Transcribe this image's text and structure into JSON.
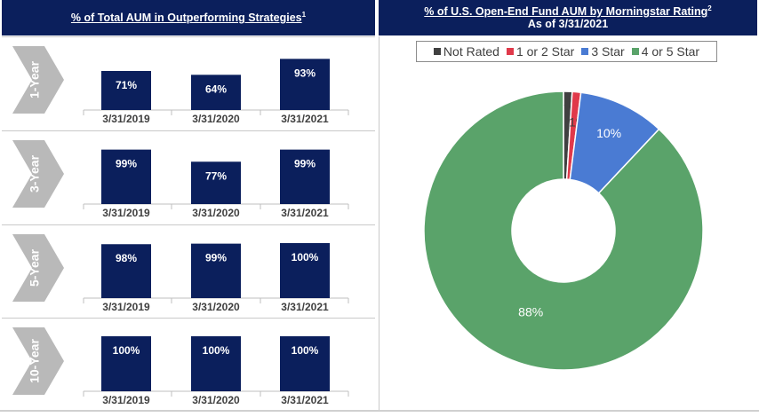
{
  "left_header": {
    "title": "% of Total AUM in Outperforming Strategies",
    "footnote": "1"
  },
  "right_header": {
    "title": "% of U.S. Open-End Fund AUM by Morningstar Rating",
    "footnote": "2",
    "subtitle": "As of 3/31/2021"
  },
  "colors": {
    "navy": "#0b1f5c",
    "arrow_gray": "#b9b9b9",
    "not_rated": "#404040",
    "one_two_star": "#e0394a",
    "three_star": "#4a7bd3",
    "four_five_star": "#5aa36a"
  },
  "chart_data": [
    {
      "type": "bar",
      "period": "1-Year",
      "categories": [
        "3/31/2019",
        "3/31/2020",
        "3/31/2021"
      ],
      "values": [
        71,
        64,
        93
      ],
      "labels": [
        "71%",
        "64%",
        "93%"
      ]
    },
    {
      "type": "bar",
      "period": "3-Year",
      "categories": [
        "3/31/2019",
        "3/31/2020",
        "3/31/2021"
      ],
      "values": [
        99,
        77,
        99
      ],
      "labels": [
        "99%",
        "77%",
        "99%"
      ]
    },
    {
      "type": "bar",
      "period": "5-Year",
      "categories": [
        "3/31/2019",
        "3/31/2020",
        "3/31/2021"
      ],
      "values": [
        98,
        99,
        100
      ],
      "labels": [
        "98%",
        "99%",
        "100%"
      ]
    },
    {
      "type": "bar",
      "period": "10-Year",
      "categories": [
        "3/31/2019",
        "3/31/2020",
        "3/31/2021"
      ],
      "values": [
        100,
        100,
        100
      ],
      "labels": [
        "100%",
        "100%",
        "100%"
      ]
    },
    {
      "type": "pie",
      "legend": [
        "Not Rated",
        "1 or 2 Star",
        "3 Star",
        "4 or 5 Star"
      ],
      "legend_placement": "top",
      "slices": [
        {
          "name": "Not Rated",
          "value": 1,
          "label": "1%",
          "color": "#404040"
        },
        {
          "name": "1 or 2 Star",
          "value": 1,
          "label": "1%",
          "color": "#e0394a"
        },
        {
          "name": "3 Star",
          "value": 10,
          "label": "10%",
          "color": "#4a7bd3"
        },
        {
          "name": "4 or 5 Star",
          "value": 88,
          "label": "88%",
          "color": "#5aa36a"
        }
      ]
    }
  ]
}
